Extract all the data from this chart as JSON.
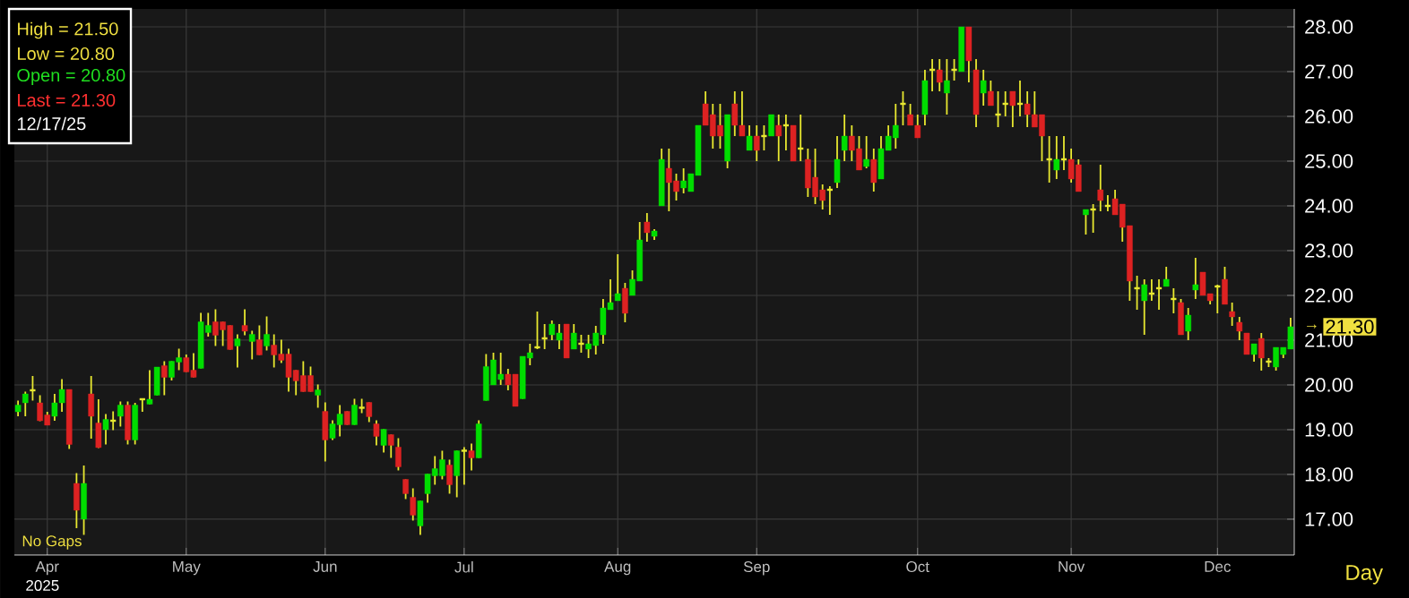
{
  "chart_data": {
    "type": "candlestick",
    "categories": [
      null,
      null,
      null,
      null,
      "Apr",
      null,
      null,
      null,
      null,
      null,
      null,
      null,
      null,
      null,
      null,
      null,
      null,
      null,
      null,
      null,
      null,
      null,
      null,
      "May",
      null,
      null,
      null,
      null,
      null,
      null,
      null,
      null,
      null,
      null,
      null,
      null,
      null,
      null,
      null,
      null,
      null,
      null,
      "Jun",
      null,
      null,
      null,
      null,
      null,
      null,
      null,
      null,
      null,
      null,
      null,
      null,
      null,
      null,
      null,
      null,
      null,
      null,
      "Jul",
      null,
      null,
      null,
      null,
      null,
      null,
      null,
      null,
      null,
      null,
      null,
      null,
      null,
      null,
      null,
      null,
      null,
      null,
      null,
      null,
      "Aug",
      null,
      null,
      null,
      null,
      null,
      null,
      null,
      null,
      null,
      null,
      null,
      null,
      null,
      null,
      null,
      null,
      null,
      null,
      "Sep",
      null,
      null,
      null,
      null,
      null,
      null,
      null,
      null,
      null,
      null,
      null,
      null,
      null,
      null,
      null,
      null,
      null,
      null,
      null,
      null,
      null,
      "Oct",
      null,
      null,
      null,
      null,
      null,
      null,
      null,
      null,
      null,
      null,
      null,
      null,
      null,
      null,
      null,
      null,
      null,
      null,
      null,
      null,
      "Nov",
      null,
      null,
      null,
      null,
      null,
      null,
      null,
      null,
      null,
      null,
      null,
      null,
      null,
      null,
      null,
      null,
      null,
      null,
      null,
      "Dec",
      null,
      null,
      null,
      null,
      null,
      null,
      null,
      null,
      null,
      null
    ],
    "ohlc": [
      [
        19.4,
        19.65,
        19.3,
        19.55
      ],
      [
        19.6,
        19.85,
        19.3,
        19.8
      ],
      [
        19.88,
        20.2,
        19.65,
        19.88
      ],
      [
        19.6,
        19.77,
        19.19,
        19.2
      ],
      [
        19.33,
        19.4,
        19.1,
        19.1
      ],
      [
        19.3,
        19.8,
        19.2,
        19.6
      ],
      [
        19.6,
        20.13,
        19.4,
        19.9
      ],
      [
        19.9,
        19.9,
        18.57,
        18.67
      ],
      [
        17.8,
        18.03,
        16.8,
        17.2
      ],
      [
        17.0,
        18.2,
        16.65,
        17.8
      ],
      [
        19.8,
        20.2,
        18.8,
        19.3
      ],
      [
        19.15,
        19.68,
        18.59,
        18.6
      ],
      [
        19.0,
        19.35,
        18.67,
        19.23
      ],
      [
        19.2,
        19.41,
        18.99,
        19.2
      ],
      [
        19.3,
        19.63,
        19.07,
        19.55
      ],
      [
        19.55,
        19.63,
        18.67,
        18.77
      ],
      [
        18.77,
        19.6,
        18.67,
        19.55
      ],
      [
        19.68,
        19.7,
        19.4,
        19.68
      ],
      [
        19.57,
        20.33,
        19.57,
        19.68
      ],
      [
        19.77,
        20.4,
        19.77,
        20.4
      ],
      [
        20.43,
        20.53,
        19.77,
        20.17
      ],
      [
        20.17,
        20.53,
        20.1,
        20.53
      ],
      [
        20.51,
        20.81,
        20.33,
        20.61
      ],
      [
        20.61,
        20.68,
        20.29,
        20.29
      ],
      [
        20.33,
        20.71,
        20.17,
        20.17
      ],
      [
        20.37,
        21.61,
        20.37,
        21.41
      ],
      [
        21.17,
        21.61,
        21.08,
        21.33
      ],
      [
        21.41,
        21.69,
        20.87,
        21.11
      ],
      [
        21.41,
        21.41,
        20.87,
        21.23
      ],
      [
        21.33,
        21.33,
        20.79,
        20.79
      ],
      [
        20.87,
        21.13,
        20.39,
        21.03
      ],
      [
        21.33,
        21.69,
        21.11,
        21.2
      ],
      [
        20.97,
        21.21,
        20.57,
        21.13
      ],
      [
        21.01,
        21.33,
        20.67,
        20.67
      ],
      [
        20.87,
        21.53,
        20.77,
        21.13
      ],
      [
        20.89,
        21.13,
        20.39,
        20.67
      ],
      [
        20.69,
        21.01,
        20.49,
        20.55
      ],
      [
        20.69,
        20.81,
        19.85,
        20.17
      ],
      [
        20.33,
        20.33,
        19.77,
        20.09
      ],
      [
        20.21,
        20.53,
        19.85,
        19.85
      ],
      [
        20.21,
        20.41,
        19.85,
        19.85
      ],
      [
        19.77,
        20.01,
        19.49,
        19.89
      ],
      [
        19.41,
        19.61,
        18.29,
        18.77
      ],
      [
        18.81,
        19.21,
        18.77,
        19.13
      ],
      [
        19.11,
        19.55,
        18.85,
        19.35
      ],
      [
        19.41,
        19.41,
        19.11,
        19.11
      ],
      [
        19.11,
        19.69,
        19.11,
        19.55
      ],
      [
        19.49,
        19.69,
        19.37,
        19.49
      ],
      [
        19.61,
        19.61,
        19.17,
        19.29
      ],
      [
        19.13,
        19.21,
        18.65,
        18.85
      ],
      [
        18.65,
        19.01,
        18.49,
        19.01
      ],
      [
        18.89,
        18.89,
        18.37,
        18.65
      ],
      [
        18.61,
        18.81,
        18.09,
        18.17
      ],
      [
        17.89,
        17.89,
        17.45,
        17.57
      ],
      [
        17.49,
        17.69,
        16.97,
        17.09
      ],
      [
        16.85,
        17.41,
        16.65,
        17.41
      ],
      [
        17.57,
        18.01,
        17.37,
        18.01
      ],
      [
        17.97,
        18.41,
        17.77,
        18.13
      ],
      [
        17.97,
        18.53,
        17.89,
        18.33
      ],
      [
        18.21,
        18.33,
        17.57,
        17.77
      ],
      [
        17.97,
        18.53,
        17.49,
        18.53
      ],
      [
        18.53,
        18.61,
        17.77,
        18.53
      ],
      [
        18.53,
        18.69,
        18.09,
        18.37
      ],
      [
        18.37,
        19.21,
        18.37,
        19.13
      ],
      [
        19.65,
        20.69,
        19.65,
        20.41
      ],
      [
        20.0,
        20.72,
        20.0,
        20.56
      ],
      [
        20.12,
        20.72,
        20.0,
        20.24
      ],
      [
        20.24,
        20.36,
        19.88,
        20.0
      ],
      [
        20.24,
        20.24,
        19.52,
        19.52
      ],
      [
        19.69,
        20.64,
        19.69,
        20.64
      ],
      [
        20.6,
        20.92,
        20.44,
        20.72
      ],
      [
        20.84,
        21.64,
        20.8,
        20.84
      ],
      [
        21.04,
        21.36,
        20.8,
        21.04
      ],
      [
        21.12,
        21.44,
        21.0,
        21.36
      ],
      [
        21.0,
        21.36,
        20.8,
        21.16
      ],
      [
        21.36,
        21.36,
        20.6,
        20.6
      ],
      [
        20.8,
        21.36,
        20.8,
        21.16
      ],
      [
        20.92,
        21.12,
        20.72,
        20.92
      ],
      [
        20.8,
        21.12,
        20.6,
        20.92
      ],
      [
        20.88,
        21.32,
        20.68,
        21.16
      ],
      [
        21.12,
        21.92,
        20.92,
        21.72
      ],
      [
        21.68,
        22.36,
        21.68,
        21.84
      ],
      [
        21.88,
        22.92,
        21.88,
        22.04
      ],
      [
        22.16,
        22.28,
        21.4,
        21.6
      ],
      [
        22.0,
        22.56,
        22.0,
        22.36
      ],
      [
        22.32,
        23.64,
        22.32,
        23.24
      ],
      [
        23.64,
        23.84,
        23.2,
        23.4
      ],
      [
        23.32,
        23.48,
        23.24,
        23.44
      ],
      [
        24.0,
        25.28,
        24.0,
        25.04
      ],
      [
        24.84,
        25.28,
        23.88,
        24.52
      ],
      [
        24.56,
        24.72,
        24.12,
        24.32
      ],
      [
        24.4,
        24.84,
        24.28,
        24.56
      ],
      [
        24.32,
        24.72,
        24.32,
        24.72
      ],
      [
        24.68,
        25.8,
        24.68,
        25.8
      ],
      [
        26.28,
        26.56,
        25.8,
        25.8
      ],
      [
        26.04,
        26.28,
        25.28,
        25.56
      ],
      [
        25.8,
        26.28,
        25.28,
        25.56
      ],
      [
        25.0,
        26.04,
        24.84,
        26.04
      ],
      [
        26.28,
        26.56,
        25.56,
        25.8
      ],
      [
        25.8,
        26.56,
        25.56,
        25.56
      ],
      [
        25.24,
        25.8,
        25.24,
        25.56
      ],
      [
        25.56,
        25.8,
        25.0,
        25.24
      ],
      [
        25.56,
        25.8,
        25.24,
        25.56
      ],
      [
        25.56,
        26.04,
        25.56,
        26.04
      ],
      [
        25.8,
        26.04,
        25.0,
        25.56
      ],
      [
        25.8,
        26.04,
        25.24,
        25.8
      ],
      [
        25.8,
        25.8,
        25.0,
        25.0
      ],
      [
        25.28,
        26.04,
        25.0,
        25.28
      ],
      [
        25.04,
        25.28,
        24.2,
        24.4
      ],
      [
        24.64,
        25.28,
        24.04,
        24.2
      ],
      [
        24.36,
        24.48,
        23.92,
        24.12
      ],
      [
        24.36,
        24.44,
        23.8,
        24.36
      ],
      [
        24.52,
        25.56,
        24.4,
        25.04
      ],
      [
        25.24,
        26.04,
        25.0,
        25.56
      ],
      [
        25.56,
        25.8,
        25.0,
        25.24
      ],
      [
        25.28,
        25.56,
        24.8,
        24.8
      ],
      [
        24.88,
        25.56,
        24.84,
        25.04
      ],
      [
        25.04,
        25.28,
        24.32,
        24.52
      ],
      [
        24.6,
        25.56,
        24.6,
        25.28
      ],
      [
        25.24,
        25.8,
        25.24,
        25.56
      ],
      [
        25.52,
        26.28,
        25.28,
        25.8
      ],
      [
        26.28,
        26.56,
        25.8,
        26.28
      ],
      [
        26.04,
        26.28,
        25.8,
        25.8
      ],
      [
        25.8,
        26.04,
        25.52,
        25.52
      ],
      [
        26.04,
        27.04,
        25.8,
        26.8
      ],
      [
        27.04,
        27.28,
        26.56,
        27.04
      ],
      [
        27.04,
        27.28,
        26.56,
        26.76
      ],
      [
        26.52,
        27.28,
        26.04,
        26.8
      ],
      [
        27.04,
        27.28,
        26.8,
        27.04
      ],
      [
        27.0,
        28.0,
        27.0,
        28.0
      ],
      [
        28.0,
        28.0,
        26.76,
        27.24
      ],
      [
        27.04,
        27.28,
        25.76,
        26.04
      ],
      [
        26.52,
        27.04,
        26.24,
        26.8
      ],
      [
        26.56,
        26.8,
        26.24,
        26.24
      ],
      [
        26.04,
        26.56,
        25.76,
        26.04
      ],
      [
        26.28,
        26.56,
        26.0,
        26.28
      ],
      [
        26.56,
        26.56,
        25.76,
        26.24
      ],
      [
        26.28,
        26.8,
        26.0,
        26.28
      ],
      [
        26.28,
        26.56,
        25.76,
        26.04
      ],
      [
        26.04,
        26.56,
        25.76,
        25.76
      ],
      [
        26.04,
        26.04,
        25.0,
        25.56
      ],
      [
        25.04,
        25.56,
        24.52,
        25.04
      ],
      [
        24.8,
        25.56,
        24.6,
        25.04
      ],
      [
        25.04,
        25.56,
        24.8,
        25.04
      ],
      [
        25.04,
        25.28,
        24.52,
        24.6
      ],
      [
        24.92,
        25.04,
        24.32,
        24.32
      ],
      [
        23.8,
        23.92,
        23.36,
        23.92
      ],
      [
        23.92,
        24.04,
        23.4,
        23.92
      ],
      [
        24.36,
        24.92,
        23.88,
        24.12
      ],
      [
        24.0,
        24.24,
        23.88,
        24.0
      ],
      [
        24.16,
        24.36,
        23.8,
        23.8
      ],
      [
        24.04,
        24.04,
        23.2,
        23.52
      ],
      [
        23.56,
        23.56,
        21.88,
        22.32
      ],
      [
        22.16,
        22.44,
        21.68,
        22.16
      ],
      [
        21.88,
        22.36,
        21.12,
        22.24
      ],
      [
        22.04,
        22.36,
        21.88,
        22.04
      ],
      [
        22.16,
        22.36,
        21.68,
        22.16
      ],
      [
        22.2,
        22.64,
        22.2,
        22.36
      ],
      [
        21.92,
        22.16,
        21.6,
        21.92
      ],
      [
        21.84,
        21.92,
        21.12,
        21.12
      ],
      [
        21.2,
        21.72,
        21.0,
        21.56
      ],
      [
        22.12,
        22.84,
        21.92,
        22.24
      ],
      [
        22.52,
        22.52,
        22.0,
        22.0
      ],
      [
        22.04,
        22.04,
        21.8,
        21.88
      ],
      [
        22.2,
        22.24,
        21.6,
        22.2
      ],
      [
        22.36,
        22.64,
        21.8,
        21.8
      ],
      [
        21.64,
        21.84,
        21.32,
        21.52
      ],
      [
        21.4,
        21.52,
        21.0,
        21.2
      ],
      [
        21.16,
        21.16,
        20.68,
        20.68
      ],
      [
        20.68,
        20.92,
        20.52,
        20.92
      ],
      [
        21.04,
        21.16,
        20.32,
        20.6
      ],
      [
        20.52,
        20.6,
        20.4,
        20.52
      ],
      [
        20.4,
        20.84,
        20.32,
        20.84
      ],
      [
        20.68,
        20.84,
        20.6,
        20.84
      ],
      [
        20.8,
        21.5,
        20.8,
        21.3
      ]
    ],
    "colors": [
      "#00dd00",
      "#00dd00",
      "#e8e830",
      "#dd2222",
      "#dd2222",
      "#00dd00",
      "#00dd00",
      "#dd2222",
      "#dd2222",
      "#00dd00",
      "#dd2222",
      "#dd2222",
      "#00dd00",
      "#e8e830",
      "#00dd00",
      "#dd2222",
      "#00dd00",
      "#e8e830",
      "#00dd00",
      "#00dd00",
      "#dd2222",
      "#00dd00",
      "#00dd00",
      "#dd2222",
      "#dd2222",
      "#00dd00",
      "#00dd00",
      "#dd2222",
      "#dd2222",
      "#dd2222",
      "#00dd00",
      "#dd2222",
      "#00dd00",
      "#dd2222",
      "#00dd00",
      "#dd2222",
      "#dd2222",
      "#dd2222",
      "#dd2222",
      "#dd2222",
      "#dd2222",
      "#00dd00",
      "#dd2222",
      "#00dd00",
      "#00dd00",
      "#dd2222",
      "#00dd00",
      "#e8e830",
      "#dd2222",
      "#dd2222",
      "#00dd00",
      "#dd2222",
      "#dd2222",
      "#dd2222",
      "#dd2222",
      "#00dd00",
      "#00dd00",
      "#00dd00",
      "#00dd00",
      "#dd2222",
      "#00dd00",
      "#e8e830",
      "#dd2222",
      "#00dd00",
      "#00dd00",
      "#00dd00",
      "#00dd00",
      "#dd2222",
      "#dd2222",
      "#00dd00",
      "#00dd00",
      "#e8e830",
      "#e8e830",
      "#00dd00",
      "#00dd00",
      "#dd2222",
      "#00dd00",
      "#e8e830",
      "#00dd00",
      "#00dd00",
      "#00dd00",
      "#00dd00",
      "#00dd00",
      "#dd2222",
      "#00dd00",
      "#00dd00",
      "#dd2222",
      "#00dd00",
      "#00dd00",
      "#dd2222",
      "#dd2222",
      "#00dd00",
      "#00dd00",
      "#00dd00",
      "#dd2222",
      "#dd2222",
      "#dd2222",
      "#00dd00",
      "#dd2222",
      "#dd2222",
      "#00dd00",
      "#dd2222",
      "#e8e830",
      "#00dd00",
      "#dd2222",
      "#e8e830",
      "#dd2222",
      "#e8e830",
      "#dd2222",
      "#dd2222",
      "#dd2222",
      "#e8e830",
      "#00dd00",
      "#00dd00",
      "#dd2222",
      "#dd2222",
      "#00dd00",
      "#dd2222",
      "#00dd00",
      "#00dd00",
      "#00dd00",
      "#e8e830",
      "#dd2222",
      "#dd2222",
      "#00dd00",
      "#e8e830",
      "#dd2222",
      "#00dd00",
      "#e8e830",
      "#00dd00",
      "#dd2222",
      "#dd2222",
      "#00dd00",
      "#dd2222",
      "#e8e830",
      "#e8e830",
      "#dd2222",
      "#e8e830",
      "#dd2222",
      "#dd2222",
      "#dd2222",
      "#e8e830",
      "#00dd00",
      "#e8e830",
      "#dd2222",
      "#dd2222",
      "#00dd00",
      "#e8e830",
      "#dd2222",
      "#e8e830",
      "#dd2222",
      "#dd2222",
      "#dd2222",
      "#e8e830",
      "#00dd00",
      "#e8e830",
      "#e8e830",
      "#00dd00",
      "#e8e830",
      "#dd2222",
      "#00dd00",
      "#00dd00",
      "#dd2222",
      "#dd2222",
      "#e8e830",
      "#dd2222",
      "#dd2222",
      "#dd2222",
      "#dd2222",
      "#00dd00",
      "#dd2222",
      "#e8e830",
      "#00dd00",
      "#00dd00",
      "#00dd00"
    ],
    "ylim": [
      16.2,
      28.4
    ],
    "yticks": [
      {
        "value": 17,
        "label": "17.00"
      },
      {
        "value": 18,
        "label": "18.00"
      },
      {
        "value": 19,
        "label": "19.00"
      },
      {
        "value": 20,
        "label": "20.00"
      },
      {
        "value": 21,
        "label": "21.00"
      },
      {
        "value": 22,
        "label": "22.00"
      },
      {
        "value": 23,
        "label": "23.00"
      },
      {
        "value": 24,
        "label": "24.00"
      },
      {
        "value": 25,
        "label": "25.00"
      },
      {
        "value": 26,
        "label": "26.00"
      },
      {
        "value": 27,
        "label": "27.00"
      },
      {
        "value": 28,
        "label": "28.00"
      }
    ],
    "grid": true,
    "annotations": [
      "High    = 21.50",
      "Low     = 20.80",
      "Open   = 20.80",
      "Last    = 21.30",
      "12/17/25",
      "No Gaps",
      "2025",
      "Day",
      "21.30",
      "→"
    ]
  }
}
